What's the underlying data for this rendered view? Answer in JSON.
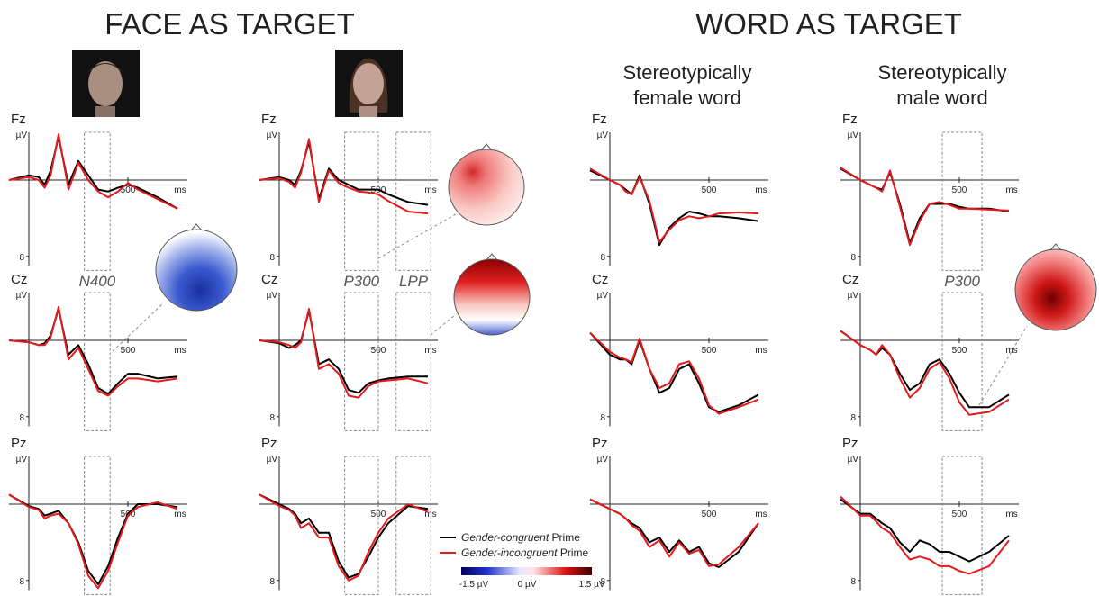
{
  "headings": [
    "FACE AS TARGET",
    "WORD AS TARGET"
  ],
  "word_subtitles": [
    [
      "Stereotypically",
      "female word"
    ],
    [
      "Stereotypically",
      "male word"
    ]
  ],
  "legend": [
    {
      "italic": "Gender-congruent",
      "text": "Prime",
      "color": "#000000"
    },
    {
      "italic": "Gender-incongruent",
      "text": "Prime",
      "color": "#e41a1c"
    }
  ],
  "colorbar": {
    "labels": [
      "-1.5 µV",
      "0 µV",
      "1.5 µV"
    ]
  },
  "chart_data": [
    {
      "type": "line",
      "title": "Fz",
      "y_label": "µV",
      "x_label": "ms",
      "xlim": [
        -100,
        800
      ],
      "ylim": [
        -5,
        9
      ],
      "y_inverted": true,
      "xticks": [
        500
      ],
      "yticks": [
        8
      ],
      "windows": [
        [
          280,
          410
        ]
      ],
      "x": [
        -100,
        0,
        50,
        80,
        110,
        150,
        200,
        250,
        300,
        350,
        400,
        450,
        500,
        550,
        650,
        750
      ],
      "series": [
        {
          "values": [
            0,
            -0.5,
            -0.3,
            0.5,
            -1,
            -4.5,
            0.5,
            -2,
            -0.5,
            1,
            1.2,
            0.8,
            0.5,
            0.8,
            1.8,
            3
          ]
        },
        {
          "values": [
            0,
            -0.3,
            0,
            0.8,
            -0.5,
            -4.8,
            1,
            -1.8,
            0,
            1.2,
            1.8,
            1.2,
            0.3,
            1,
            2,
            3
          ]
        }
      ]
    },
    {
      "type": "line",
      "title": "Cz",
      "y_label": "µV",
      "x_label": "ms",
      "xlim": [
        -100,
        800
      ],
      "ylim": [
        -5,
        9
      ],
      "y_inverted": true,
      "xticks": [
        500
      ],
      "yticks": [
        8
      ],
      "windows": [
        [
          280,
          410
        ]
      ],
      "window_labels": [
        "N400"
      ],
      "x": [
        -100,
        0,
        50,
        80,
        110,
        150,
        200,
        250,
        300,
        350,
        400,
        450,
        500,
        550,
        650,
        750
      ],
      "series": [
        {
          "values": [
            0,
            0.2,
            0.5,
            0.3,
            -0.5,
            -3.3,
            1.5,
            0.5,
            2.5,
            5,
            5.6,
            4.5,
            3.5,
            3.5,
            4,
            3.8
          ]
        },
        {
          "values": [
            0,
            0.2,
            0.5,
            0.5,
            -0.3,
            -3.5,
            2,
            0.8,
            3,
            5.3,
            5.8,
            4.8,
            4,
            4,
            4.3,
            4
          ]
        }
      ]
    },
    {
      "type": "line",
      "title": "Pz",
      "y_label": "µV",
      "x_label": "ms",
      "xlim": [
        -100,
        800
      ],
      "ylim": [
        -5,
        9
      ],
      "y_inverted": true,
      "xticks": [
        500
      ],
      "yticks": [
        8
      ],
      "windows": [
        [
          280,
          410
        ]
      ],
      "x": [
        -100,
        0,
        50,
        80,
        110,
        150,
        200,
        250,
        300,
        350,
        400,
        450,
        500,
        550,
        650,
        750
      ],
      "series": [
        {
          "values": [
            -1,
            0.2,
            0.5,
            1.2,
            1,
            0.7,
            2,
            4,
            7,
            8.4,
            6.5,
            3.5,
            1,
            0,
            0,
            0.3
          ]
        },
        {
          "values": [
            -1,
            0.3,
            0.6,
            1.5,
            1.2,
            1,
            2,
            4.2,
            7.5,
            8.8,
            7,
            4,
            1.2,
            0.3,
            -0.2,
            0.5
          ]
        }
      ]
    },
    {
      "type": "line",
      "title": "Fz",
      "y_label": "µV",
      "x_label": "ms",
      "xlim": [
        -100,
        800
      ],
      "ylim": [
        -5,
        9
      ],
      "y_inverted": true,
      "xticks": [
        500
      ],
      "yticks": [
        8
      ],
      "windows": [
        [
          330,
          500
        ],
        [
          590,
          765
        ]
      ],
      "x": [
        -100,
        0,
        50,
        80,
        110,
        150,
        200,
        250,
        300,
        350,
        400,
        450,
        500,
        550,
        650,
        750
      ],
      "series": [
        {
          "values": [
            0,
            -0.3,
            0,
            0.5,
            -1,
            -4,
            2,
            -1.2,
            0,
            0.5,
            1,
            1,
            1,
            1.5,
            2.3,
            2.6
          ]
        },
        {
          "values": [
            0,
            -0.2,
            0.2,
            0.8,
            -0.8,
            -4.3,
            2.3,
            -1,
            0.3,
            0.8,
            1.2,
            1.3,
            1.5,
            2.2,
            3.3,
            3.5
          ]
        }
      ]
    },
    {
      "type": "line",
      "title": "Cz",
      "y_label": "µV",
      "x_label": "ms",
      "xlim": [
        -100,
        800
      ],
      "ylim": [
        -5,
        9
      ],
      "y_inverted": true,
      "xticks": [
        500
      ],
      "yticks": [
        8
      ],
      "windows": [
        [
          330,
          500
        ],
        [
          590,
          765
        ]
      ],
      "window_labels": [
        "P300",
        "LPP"
      ],
      "x": [
        -100,
        0,
        50,
        80,
        110,
        150,
        200,
        250,
        300,
        350,
        400,
        450,
        500,
        550,
        650,
        750
      ],
      "series": [
        {
          "values": [
            0,
            0.3,
            0.8,
            0.5,
            0,
            -3.1,
            2.5,
            2,
            3,
            5.2,
            5.5,
            4.5,
            4.2,
            4,
            3.8,
            3.8
          ]
        },
        {
          "values": [
            0,
            0.2,
            0.5,
            0.8,
            0.2,
            -3.3,
            3,
            2.5,
            3.5,
            5.8,
            6,
            4.8,
            4.3,
            4.2,
            4,
            4.5
          ]
        }
      ]
    },
    {
      "type": "line",
      "title": "Pz",
      "y_label": "µV",
      "x_label": "ms",
      "xlim": [
        -100,
        800
      ],
      "ylim": [
        -5,
        9
      ],
      "y_inverted": true,
      "xticks": [
        500
      ],
      "yticks": [
        8
      ],
      "windows": [
        [
          330,
          500
        ],
        [
          590,
          765
        ]
      ],
      "x": [
        -100,
        0,
        50,
        80,
        110,
        150,
        200,
        250,
        300,
        350,
        400,
        450,
        500,
        550,
        650,
        750
      ],
      "series": [
        {
          "values": [
            -1,
            0,
            0.5,
            1,
            2,
            1.5,
            3,
            3,
            6,
            7.7,
            7.3,
            5.5,
            3.5,
            2,
            0.2,
            0.5
          ]
        },
        {
          "values": [
            -1,
            0.2,
            0.6,
            1.2,
            2.5,
            2,
            3.5,
            3.5,
            6.5,
            8,
            7.5,
            5,
            3,
            1.5,
            0,
            0.8
          ]
        }
      ]
    },
    {
      "type": "line",
      "title": "Fz",
      "y_label": "µV",
      "x_label": "ms",
      "xlim": [
        -100,
        800
      ],
      "ylim": [
        -5,
        9
      ],
      "y_inverted": true,
      "xticks": [
        500
      ],
      "yticks": [
        8
      ],
      "x": [
        -100,
        0,
        50,
        80,
        110,
        150,
        200,
        250,
        300,
        350,
        400,
        450,
        500,
        550,
        650,
        750
      ],
      "series": [
        {
          "values": [
            -1,
            0,
            0.5,
            1,
            1.5,
            -0.5,
            2.5,
            6.8,
            5,
            4,
            3.3,
            3.5,
            3.8,
            3.8,
            4,
            4.3
          ]
        },
        {
          "values": [
            -1.2,
            0,
            0.5,
            1.2,
            1.5,
            -0.3,
            2.2,
            6.5,
            5.2,
            4.2,
            3.8,
            4,
            3.8,
            3.5,
            3.4,
            3.5
          ]
        }
      ]
    },
    {
      "type": "line",
      "title": "Cz",
      "y_label": "µV",
      "x_label": "ms",
      "xlim": [
        -100,
        800
      ],
      "ylim": [
        -5,
        9
      ],
      "y_inverted": true,
      "xticks": [
        500
      ],
      "yticks": [
        8
      ],
      "x": [
        -100,
        0,
        50,
        80,
        110,
        150,
        200,
        250,
        300,
        350,
        400,
        450,
        500,
        550,
        650,
        750
      ],
      "series": [
        {
          "values": [
            -0.8,
            1.5,
            2,
            2,
            2.5,
            0,
            3,
            5.5,
            5,
            3,
            2.5,
            4.5,
            7,
            7.5,
            6.8,
            5.7
          ]
        },
        {
          "values": [
            -0.8,
            1.2,
            1.8,
            2,
            2.3,
            -0.2,
            3,
            5,
            4.5,
            2.5,
            2.2,
            4,
            6.8,
            7.7,
            7,
            6.2
          ]
        }
      ]
    },
    {
      "type": "line",
      "title": "Pz",
      "y_label": "µV",
      "x_label": "ms",
      "xlim": [
        -100,
        800
      ],
      "ylim": [
        -5,
        9
      ],
      "y_inverted": true,
      "xticks": [
        500
      ],
      "yticks": [
        8
      ],
      "x": [
        -100,
        0,
        50,
        80,
        110,
        150,
        200,
        250,
        300,
        350,
        400,
        450,
        500,
        550,
        650,
        750
      ],
      "series": [
        {
          "values": [
            -0.5,
            0.5,
            1,
            1.5,
            2,
            2.5,
            4,
            3.5,
            5,
            3.8,
            5,
            4.5,
            6.2,
            6.6,
            5,
            2
          ]
        },
        {
          "values": [
            -0.5,
            0.5,
            1,
            1.5,
            2.2,
            2.8,
            4.5,
            3.8,
            5.5,
            4,
            5.2,
            4.8,
            6.5,
            6.3,
            4.5,
            2
          ]
        }
      ]
    },
    {
      "type": "line",
      "title": "Fz",
      "y_label": "µV",
      "x_label": "ms",
      "xlim": [
        -100,
        800
      ],
      "ylim": [
        -5,
        9
      ],
      "y_inverted": true,
      "xticks": [
        500
      ],
      "yticks": [
        8
      ],
      "windows": [
        [
          414,
          614
        ]
      ],
      "x": [
        -100,
        0,
        50,
        80,
        110,
        150,
        200,
        250,
        300,
        350,
        400,
        450,
        500,
        550,
        650,
        750
      ],
      "series": [
        {
          "values": [
            -1.2,
            0,
            0.5,
            0.8,
            1,
            -0.8,
            2.5,
            6.6,
            4,
            2.5,
            2.5,
            2.5,
            2.8,
            3,
            3,
            3.3
          ]
        },
        {
          "values": [
            -1.3,
            0,
            0.5,
            0.8,
            1.2,
            -1,
            2.8,
            6.8,
            4.3,
            2.5,
            2.3,
            2.6,
            3,
            3,
            3.1,
            3.2
          ]
        }
      ]
    },
    {
      "type": "line",
      "title": "Cz",
      "y_label": "µV",
      "x_label": "ms",
      "xlim": [
        -100,
        800
      ],
      "ylim": [
        -5,
        9
      ],
      "y_inverted": true,
      "xticks": [
        500
      ],
      "yticks": [
        8
      ],
      "windows": [
        [
          414,
          614
        ]
      ],
      "window_labels": [
        "P300"
      ],
      "x": [
        -100,
        0,
        50,
        80,
        110,
        150,
        200,
        250,
        300,
        350,
        400,
        450,
        500,
        550,
        650,
        750
      ],
      "series": [
        {
          "values": [
            -1,
            0.5,
            1,
            1.5,
            0.8,
            1.5,
            3.5,
            5.2,
            4.5,
            2.5,
            2,
            3.5,
            5.5,
            7,
            7,
            5.7
          ]
        },
        {
          "values": [
            -1,
            0.5,
            1,
            1.5,
            0.5,
            1.5,
            4,
            6,
            5,
            3,
            2.3,
            4,
            6.5,
            7.8,
            7.5,
            6.2
          ]
        }
      ]
    },
    {
      "type": "line",
      "title": "Pz",
      "y_label": "µV",
      "x_label": "ms",
      "xlim": [
        -100,
        800
      ],
      "ylim": [
        -5,
        9
      ],
      "y_inverted": true,
      "xticks": [
        500
      ],
      "yticks": [
        8
      ],
      "windows": [
        [
          414,
          614
        ]
      ],
      "x": [
        -100,
        0,
        50,
        80,
        110,
        150,
        200,
        250,
        300,
        350,
        400,
        450,
        500,
        550,
        650,
        750
      ],
      "series": [
        {
          "values": [
            -0.5,
            1,
            1,
            1.5,
            2,
            2.5,
            4,
            5,
            3.8,
            4.2,
            5,
            5,
            5.5,
            6,
            5,
            3.3
          ]
        },
        {
          "values": [
            -0.8,
            1.2,
            1.2,
            1.8,
            2.5,
            3,
            4.5,
            5.8,
            5.5,
            5.8,
            6.5,
            6.5,
            7,
            7.3,
            6.5,
            3.8
          ]
        }
      ]
    }
  ]
}
